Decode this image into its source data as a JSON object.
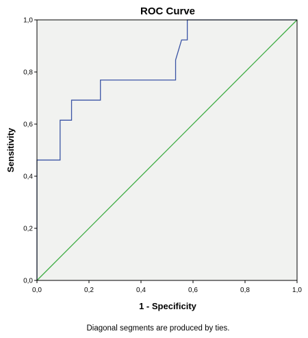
{
  "chart_data": {
    "type": "line",
    "title": "ROC Curve",
    "xlabel": "1 - Specificity",
    "ylabel": "Sensitivity",
    "xlim": [
      0,
      1
    ],
    "ylim": [
      0,
      1
    ],
    "x_ticks": [
      0,
      0.2,
      0.4,
      0.6,
      0.8,
      1.0
    ],
    "y_ticks": [
      0,
      0.2,
      0.4,
      0.6,
      0.8,
      1.0
    ],
    "x_tick_labels": [
      "0,0",
      "0,2",
      "0,4",
      "0,6",
      "0,8",
      "1,0"
    ],
    "y_tick_labels": [
      "0,0",
      "0,2",
      "0,4",
      "0,6",
      "0,8",
      "1,0"
    ],
    "grid": false,
    "legend": "none",
    "background_color": "#f1f2f0",
    "series": [
      {
        "color": "#3953a4",
        "style": "step",
        "x": [
          0.0,
          0.0,
          0.089,
          0.089,
          0.133,
          0.133,
          0.244,
          0.244,
          0.533,
          0.533,
          0.556,
          0.556,
          0.578,
          0.578,
          1.0
        ],
        "y": [
          0.0,
          0.462,
          0.462,
          0.615,
          0.615,
          0.692,
          0.692,
          0.769,
          0.769,
          0.846,
          0.923,
          0.923,
          0.923,
          1.0,
          1.0
        ]
      },
      {
        "color": "#3aab3f",
        "style": "diagonal",
        "x": [
          0,
          1
        ],
        "y": [
          0,
          1
        ]
      }
    ],
    "footnote": "Diagonal segments are produced by ties."
  }
}
